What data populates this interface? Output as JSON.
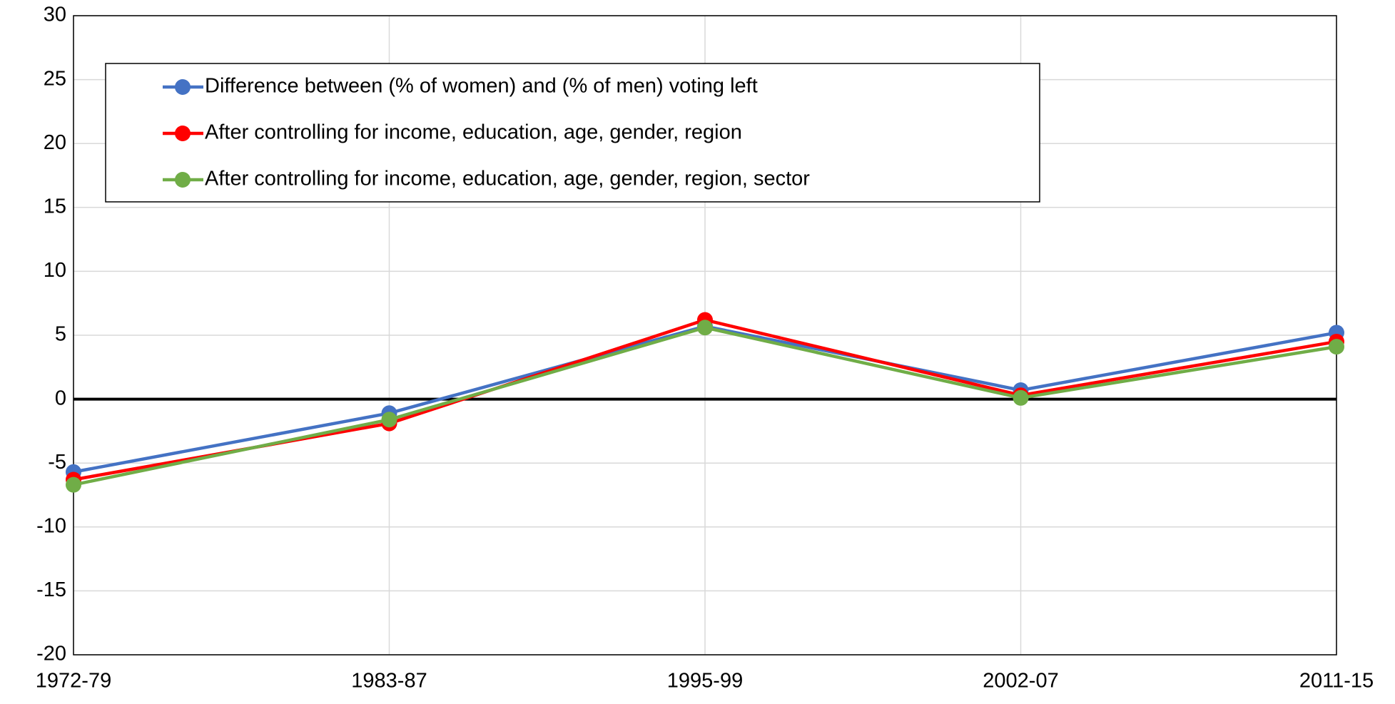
{
  "chart_data": {
    "type": "line",
    "categories": [
      "1972-79",
      "1983-87",
      "1995-99",
      "2002-07",
      "2011-15"
    ],
    "series": [
      {
        "name": "Difference between (% of women) and (% of men) voting left",
        "color": "#4472c4",
        "values": [
          -5.7,
          -1.1,
          5.7,
          0.7,
          5.2
        ]
      },
      {
        "name": "After controlling for income, education, age, gender, region",
        "color": "#ff0000",
        "values": [
          -6.3,
          -1.9,
          6.2,
          0.3,
          4.5
        ]
      },
      {
        "name": "After controlling for income, education, age, gender, region, sector",
        "color": "#70ad47",
        "values": [
          -6.7,
          -1.6,
          5.6,
          0.1,
          4.1
        ]
      }
    ],
    "ylim": [
      -20,
      30
    ],
    "yticks": [
      -20,
      -15,
      -10,
      -5,
      0,
      5,
      10,
      15,
      20,
      25,
      30
    ],
    "grid": true,
    "legend": "top-left"
  }
}
